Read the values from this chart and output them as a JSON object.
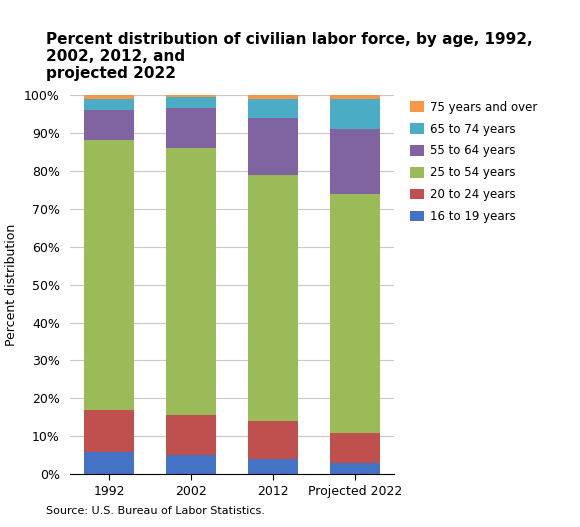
{
  "title": "Percent distribution of civilian labor force, by age, 1992, 2002, 2012, and\nprojected 2022",
  "ylabel": "Percent distribution",
  "source": "Source: U.S. Bureau of Labor Statistics.",
  "categories": [
    "1992",
    "2002",
    "2012",
    "Projected 2022"
  ],
  "series": [
    {
      "label": "16 to 19 years",
      "color": "#4472C4",
      "values": [
        6.0,
        5.0,
        4.0,
        3.0
      ]
    },
    {
      "label": "20 to 24 years",
      "color": "#C0504D",
      "values": [
        11.0,
        10.5,
        10.0,
        8.0
      ]
    },
    {
      "label": "25 to 54 years",
      "color": "#9BBB59",
      "values": [
        71.0,
        70.5,
        65.0,
        63.0
      ]
    },
    {
      "label": "55 to 64 years",
      "color": "#8064A2",
      "values": [
        8.0,
        10.5,
        15.0,
        17.0
      ]
    },
    {
      "label": "65 to 74 years",
      "color": "#4BACC6",
      "values": [
        3.0,
        3.0,
        5.0,
        8.0
      ]
    },
    {
      "label": "75 years and over",
      "color": "#F79646",
      "values": [
        1.0,
        0.5,
        1.0,
        1.0
      ]
    }
  ],
  "ylim": [
    0,
    100
  ],
  "yticks": [
    0,
    10,
    20,
    30,
    40,
    50,
    60,
    70,
    80,
    90,
    100
  ],
  "ytick_labels": [
    "0%",
    "10%",
    "20%",
    "30%",
    "40%",
    "50%",
    "60%",
    "70%",
    "80%",
    "90%",
    "100%"
  ],
  "bar_width": 0.6,
  "figsize": [
    5.8,
    5.27
  ],
  "dpi": 100,
  "title_fontsize": 11,
  "axis_label_fontsize": 9,
  "tick_fontsize": 9,
  "legend_fontsize": 8.5,
  "source_fontsize": 8,
  "background_color": "#ffffff",
  "grid_color": "#c8c8c8"
}
